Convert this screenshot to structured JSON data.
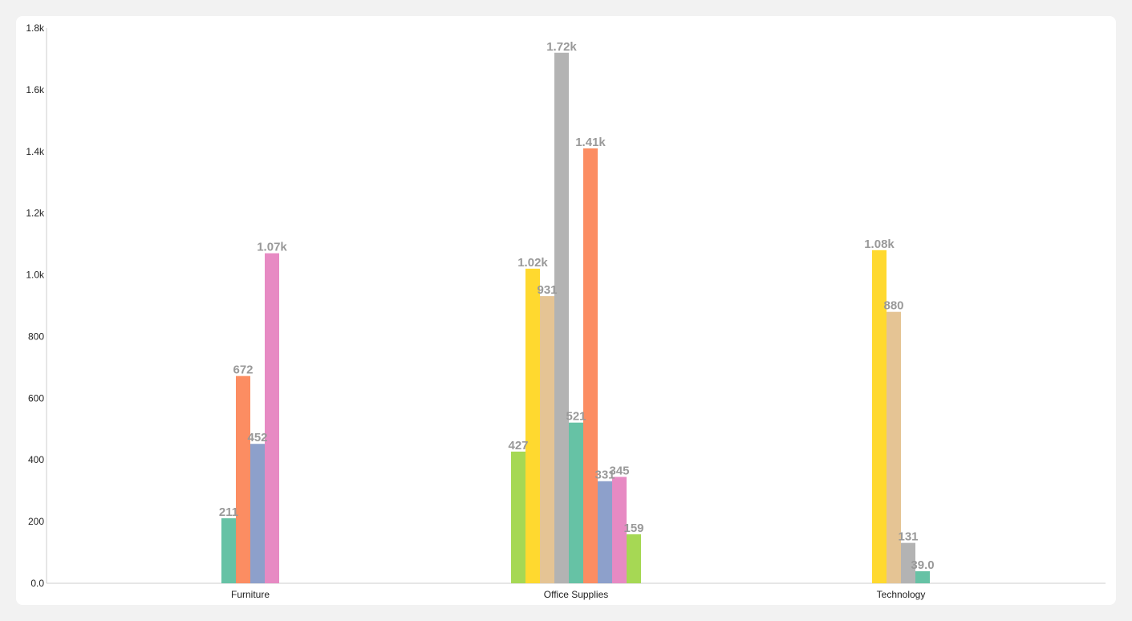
{
  "chart_data": {
    "type": "bar",
    "categories": [
      "Furniture",
      "Office Supplies",
      "Technology"
    ],
    "ylim": [
      0,
      1800
    ],
    "yticks": [
      0,
      200,
      400,
      600,
      800,
      1000,
      1200,
      1400,
      1600,
      1800
    ],
    "ytick_labels": [
      "0.0",
      "200",
      "400",
      "600",
      "800",
      "1.0k",
      "1.2k",
      "1.4k",
      "1.6k",
      "1.8k"
    ],
    "xlabel": "",
    "ylabel": "",
    "grid": false,
    "groups": [
      {
        "category": "Furniture",
        "bars": [
          {
            "value": 211,
            "label": "211",
            "color": "#66c2a5"
          },
          {
            "value": 672,
            "label": "672",
            "color": "#fc8d62"
          },
          {
            "value": 452,
            "label": "452",
            "color": "#8da0cb"
          },
          {
            "value": 1070,
            "label": "1.07k",
            "color": "#e78ac3"
          }
        ]
      },
      {
        "category": "Office Supplies",
        "bars": [
          {
            "value": 427,
            "label": "427",
            "color": "#a6d854"
          },
          {
            "value": 1020,
            "label": "1.02k",
            "color": "#ffd92f"
          },
          {
            "value": 931,
            "label": "931",
            "color": "#e5c494"
          },
          {
            "value": 1720,
            "label": "1.72k",
            "color": "#b3b3b3"
          },
          {
            "value": 521,
            "label": "521",
            "color": "#66c2a5"
          },
          {
            "value": 1410,
            "label": "1.41k",
            "color": "#fc8d62"
          },
          {
            "value": 331,
            "label": "331",
            "color": "#8da0cb"
          },
          {
            "value": 345,
            "label": "345",
            "color": "#e78ac3"
          },
          {
            "value": 159,
            "label": "159",
            "color": "#a6d854"
          }
        ]
      },
      {
        "category": "Technology",
        "bars": [
          {
            "value": 1080,
            "label": "1.08k",
            "color": "#ffd92f"
          },
          {
            "value": 880,
            "label": "880",
            "color": "#e5c494"
          },
          {
            "value": 131,
            "label": "131",
            "color": "#b3b3b3"
          },
          {
            "value": 39,
            "label": "39.0",
            "color": "#66c2a5"
          }
        ]
      }
    ]
  }
}
